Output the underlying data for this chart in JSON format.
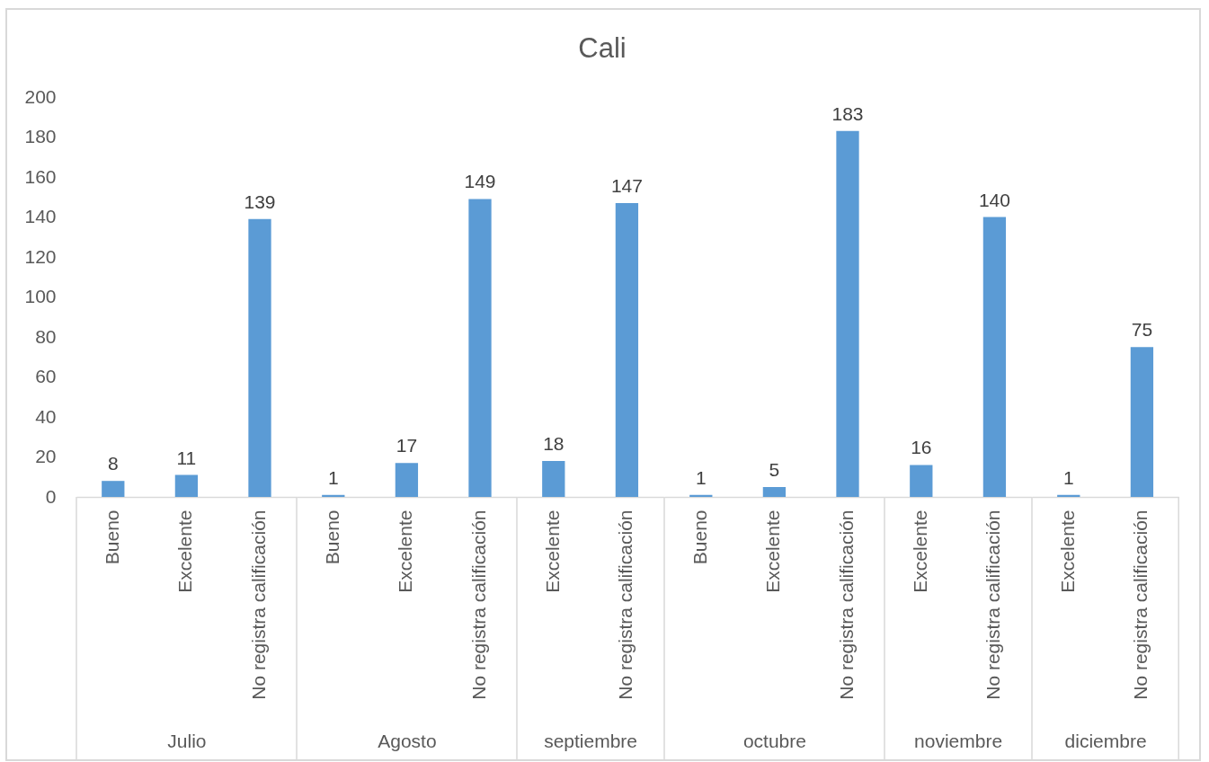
{
  "chart_data": [
    {
      "type": "other",
      "title": "Cali"
    },
    {
      "type": "bar",
      "xlabel": "Julio",
      "categories": [
        "Bueno",
        "Excelente",
        "No registra calificación"
      ],
      "values": [
        8,
        11,
        139
      ],
      "color": "#5b9bd5",
      "ylim": [
        0,
        200
      ],
      "yticks": [
        0,
        20,
        40,
        60,
        80,
        100,
        120,
        140,
        160,
        180,
        200
      ],
      "grid": false,
      "data_labels": true
    },
    {
      "type": "bar",
      "xlabel": "Agosto",
      "categories": [
        "Bueno",
        "Excelente",
        "No registra calificación"
      ],
      "values": [
        1,
        17,
        149
      ],
      "color": "#5b9bd5",
      "ylim": [
        0,
        200
      ],
      "yticks": [
        0,
        20,
        40,
        60,
        80,
        100,
        120,
        140,
        160,
        180,
        200
      ],
      "grid": false,
      "tick_labels": "x",
      "data_labels": true
    },
    {
      "type": "bar",
      "xlabel": "septiembre",
      "categories": [
        "Excelente",
        "No registra calificación"
      ],
      "values": [
        18,
        147
      ],
      "color": "#5b9bd5",
      "ylim": [
        0,
        200
      ],
      "yticks": [
        0,
        20,
        40,
        60,
        80,
        100,
        120,
        140,
        160,
        180,
        200
      ],
      "grid": false,
      "tick_labels": "x",
      "data_labels": true
    },
    {
      "type": "bar",
      "xlabel": "octubre",
      "categories": [
        "Bueno",
        "Excelente",
        "No registra calificación"
      ],
      "values": [
        1,
        5,
        183
      ],
      "color": "#5b9bd5",
      "ylim": [
        0,
        200
      ],
      "yticks": [
        0,
        20,
        40,
        60,
        80,
        100,
        120,
        140,
        160,
        180,
        200
      ],
      "grid": false,
      "tick_labels": "x",
      "data_labels": true
    },
    {
      "type": "bar",
      "xlabel": "noviembre",
      "categories": [
        "Excelente",
        "No registra calificación"
      ],
      "values": [
        16,
        140
      ],
      "color": "#5b9bd5",
      "ylim": [
        0,
        200
      ],
      "yticks": [
        0,
        20,
        40,
        60,
        80,
        100,
        120,
        140,
        160,
        180,
        200
      ],
      "grid": false,
      "tick_labels": "x",
      "data_labels": true
    },
    {
      "type": "bar",
      "xlabel": "diciembre",
      "categories": [
        "Excelente",
        "No registra calificación"
      ],
      "values": [
        1,
        75
      ],
      "color": "#5b9bd5",
      "ylim": [
        0,
        200
      ],
      "yticks": [
        0,
        20,
        40,
        60,
        80,
        100,
        120,
        140,
        160,
        180,
        200
      ],
      "grid": false,
      "tick_labels": "x",
      "data_labels": true
    }
  ]
}
